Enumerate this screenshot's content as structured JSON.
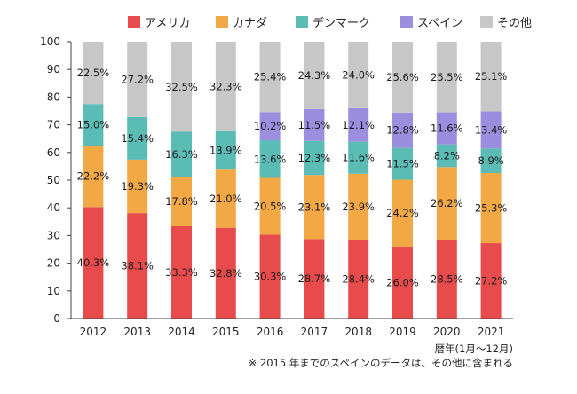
{
  "chart_data": {
    "type": "bar",
    "stacked": true,
    "categories": [
      "2012",
      "2013",
      "2014",
      "2015",
      "2016",
      "2017",
      "2018",
      "2019",
      "2020",
      "2021"
    ],
    "series": [
      {
        "name": "アメリカ",
        "color": "#e84b4b",
        "values": [
          40.3,
          38.1,
          33.3,
          32.8,
          30.3,
          28.7,
          28.4,
          26.0,
          28.5,
          27.2
        ]
      },
      {
        "name": "カナダ",
        "color": "#f2a845",
        "values": [
          22.2,
          19.3,
          17.8,
          21.0,
          20.5,
          23.1,
          23.9,
          24.2,
          26.2,
          25.3
        ]
      },
      {
        "name": "デンマーク",
        "color": "#5bbcb6",
        "values": [
          15.0,
          15.4,
          16.3,
          13.9,
          13.6,
          12.3,
          11.6,
          11.5,
          8.2,
          8.9
        ]
      },
      {
        "name": "スペイン",
        "color": "#9c8ede",
        "values": [
          0,
          0,
          0,
          0,
          10.2,
          11.5,
          12.1,
          12.8,
          11.6,
          13.4
        ]
      },
      {
        "name": "その他",
        "color": "#c7c7c7",
        "values": [
          22.5,
          27.2,
          32.5,
          32.3,
          25.4,
          24.3,
          24.0,
          25.6,
          25.5,
          25.1
        ]
      }
    ],
    "data_labels": [
      {
        "series": "アメリカ",
        "values": [
          "40.3%",
          "38.1%",
          "33.3%",
          "32.8%",
          "30.3%",
          "28.7%",
          "28.4%",
          "26.0%",
          "28.5%",
          "27.2%"
        ]
      },
      {
        "series": "カナダ",
        "values": [
          "22.2%",
          "19.3%",
          "17.8%",
          "21.0%",
          "20.5%",
          "23.1%",
          "23.9%",
          "24.2%",
          "26.2%",
          "25.3%"
        ]
      },
      {
        "series": "デンマーク",
        "values": [
          "15.0%",
          "15.4%",
          "16.3%",
          "13.9%",
          "13.6%",
          "12.3%",
          "11.6%",
          "11.5%",
          "8.2%",
          "8.9%"
        ]
      },
      {
        "series": "スペイン",
        "values": [
          "",
          "",
          "",
          "",
          "10.2%",
          "11.5%",
          "12.1%",
          "12.8%",
          "11.6%",
          "13.4%"
        ]
      },
      {
        "series": "その他",
        "values": [
          "22.5%",
          "27.2%",
          "32.5%",
          "32.3%",
          "25.4%",
          "24.3%",
          "24.0%",
          "25.6%",
          "25.5%",
          "25.1%"
        ]
      }
    ],
    "yticks": [
      "0",
      "10",
      "20",
      "30",
      "40",
      "50",
      "60",
      "70",
      "80",
      "90",
      "100"
    ],
    "ylim": [
      0,
      100
    ],
    "grid": false,
    "legend_position": "top",
    "xlabel": "暦年(1月〜12月)",
    "footnote": "※ 2015 年までのスペインのデータは、その他に含まれる"
  }
}
